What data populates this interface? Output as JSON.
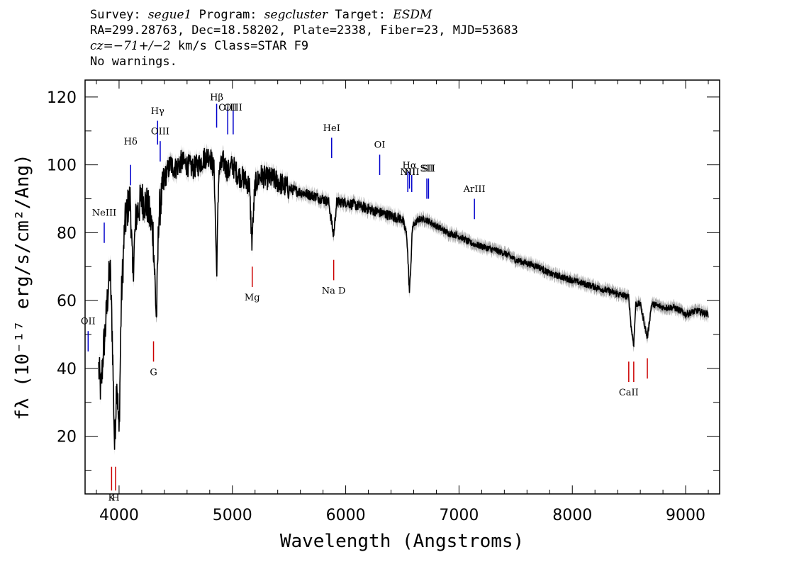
{
  "header": {
    "line1": {
      "survey_label": "Survey:",
      "survey": "segue1",
      "program_label": "Program:",
      "program": "segcluster",
      "target_label": "Target:",
      "target": "ESDM"
    },
    "line2": "RA=299.28763, Dec=18.58202, Plate=2338, Fiber=23, MJD=53683",
    "line3": {
      "cz_label": "cz",
      "cz_value": "=−71+/−2",
      "cz_units": "km/s Class=STAR F9"
    },
    "line4": "No warnings."
  },
  "colors": {
    "spectrum": "#000000",
    "error_band": "#aaaaaa",
    "emission_line": "#0000cc",
    "absorption_line": "#cc0000"
  },
  "chart_data": {
    "type": "line",
    "xlabel": "Wavelength (Angstroms)",
    "ylabel": "fλ (10⁻¹⁷ erg/s/cm²/Ang)",
    "xlim": [
      3700,
      9300
    ],
    "ylim": [
      3,
      125
    ],
    "x_ticks": [
      4000,
      5000,
      6000,
      7000,
      8000,
      9000
    ],
    "y_ticks": [
      20,
      40,
      60,
      80,
      100,
      120
    ],
    "grid": false,
    "series": [
      {
        "x": [
          3820,
          3840,
          3860,
          3880,
          3900,
          3920,
          3940,
          3960,
          3980,
          4000,
          4020,
          4050,
          4080,
          4100,
          4120,
          4150,
          4200,
          4250,
          4300,
          4330,
          4350,
          4400,
          4450,
          4500,
          4550,
          4600,
          4650,
          4700,
          4750,
          4800,
          4840,
          4861,
          4880,
          4920,
          4960,
          5000,
          5050,
          5100,
          5150,
          5172,
          5200,
          5250,
          5300,
          5350,
          5400,
          5450,
          5500,
          5600,
          5700,
          5800,
          5850,
          5893,
          5920,
          6000,
          6100,
          6200,
          6300,
          6400,
          6500,
          6540,
          6563,
          6590,
          6650,
          6700,
          6800,
          6900,
          7000,
          7100,
          7200,
          7300,
          7400,
          7500,
          7600,
          7700,
          7800,
          7900,
          8000,
          8100,
          8200,
          8300,
          8400,
          8498,
          8520,
          8542,
          8560,
          8600,
          8662,
          8700,
          8800,
          8900,
          9000,
          9100,
          9200
        ],
        "y": [
          40,
          33,
          45,
          52,
          62,
          70,
          50,
          17,
          38,
          20,
          60,
          82,
          88,
          90,
          67,
          85,
          90,
          88,
          80,
          54,
          85,
          96,
          100,
          99,
          101,
          100,
          99,
          100,
          102,
          103,
          98,
          68,
          98,
          101,
          98,
          100,
          97,
          96,
          94,
          77,
          94,
          97,
          96,
          96,
          95,
          94,
          93,
          92,
          91,
          90,
          89,
          79,
          89,
          89,
          88,
          87,
          86,
          85,
          84,
          79,
          62,
          82,
          84,
          84,
          82,
          80,
          79,
          77,
          76,
          75,
          74,
          72,
          71,
          70,
          68,
          67,
          66,
          65,
          64,
          63,
          62,
          61,
          52,
          47,
          59,
          59,
          49,
          59,
          58,
          58,
          56,
          57,
          56
        ]
      }
    ],
    "emission_lines": [
      {
        "label": "OII",
        "wavelength": 3727,
        "y": [
          45,
          51
        ],
        "label_y": 53
      },
      {
        "label": "NeIII",
        "wavelength": 3869,
        "y": [
          77,
          83
        ],
        "label_y": 85
      },
      {
        "label": "Hδ",
        "wavelength": 4102,
        "y": [
          94,
          100
        ],
        "label_y": 106
      },
      {
        "label": "Hγ",
        "wavelength": 4340,
        "y": [
          106,
          113
        ],
        "label_y": 115
      },
      {
        "label": "OIII",
        "wavelength": 4363,
        "y": [
          101,
          107
        ],
        "label_y": 109
      },
      {
        "label": "Hβ",
        "wavelength": 4861,
        "y": [
          111,
          118
        ],
        "label_y": 119
      },
      {
        "label": "OIII",
        "wavelength": 4959,
        "y": [
          109,
          117
        ],
        "label_y": 116
      },
      {
        "label": "OIII",
        "wavelength": 5007,
        "y": [
          109,
          116
        ],
        "label_y": 116
      },
      {
        "label": "HeI",
        "wavelength": 5876,
        "y": [
          102,
          108
        ],
        "label_y": 110
      },
      {
        "label": "OI",
        "wavelength": 6300,
        "y": [
          97,
          103
        ],
        "label_y": 105
      },
      {
        "label": "NII",
        "wavelength": 6548,
        "y": [
          92,
          98
        ],
        "label_y": 97
      },
      {
        "label": "Hα",
        "wavelength": 6563,
        "y": [
          93,
          98
        ],
        "label_y": 99
      },
      {
        "label": "NII",
        "wavelength": 6583,
        "y": [
          92,
          97
        ],
        "label_y": 97
      },
      {
        "label": "SII",
        "wavelength": 6716,
        "y": [
          90,
          96
        ],
        "label_y": 98
      },
      {
        "label": "SII",
        "wavelength": 6731,
        "y": [
          90,
          96
        ],
        "label_y": 98
      },
      {
        "label": "ArIII",
        "wavelength": 7136,
        "y": [
          84,
          90
        ],
        "label_y": 92
      }
    ],
    "absorption_lines": [
      {
        "label": "K",
        "wavelength": 3934,
        "y": [
          4,
          11
        ],
        "label_y": 1
      },
      {
        "label": "H",
        "wavelength": 3969,
        "y": [
          4,
          11
        ],
        "label_y": 1
      },
      {
        "label": "G",
        "wavelength": 4304,
        "y": [
          42,
          48
        ],
        "label_y": 38
      },
      {
        "label": "Mg",
        "wavelength": 5175,
        "y": [
          64,
          70
        ],
        "label_y": 60
      },
      {
        "label": "Na D",
        "wavelength": 5894,
        "y": [
          66,
          72
        ],
        "label_y": 62
      },
      {
        "label": "CaII",
        "wavelength": 8498,
        "y": [
          36,
          42
        ],
        "label_y": 32
      },
      {
        "label": "",
        "wavelength": 8542,
        "y": [
          36,
          42
        ],
        "label_y": 32
      },
      {
        "label": "",
        "wavelength": 8662,
        "y": [
          37,
          43
        ],
        "label_y": 32
      }
    ]
  }
}
